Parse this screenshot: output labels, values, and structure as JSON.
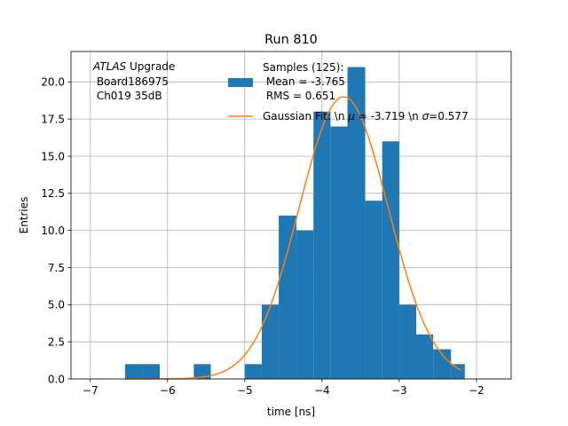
{
  "chart_data": {
    "type": "bar",
    "title": "Run 810",
    "xlabel": "time [ns]",
    "ylabel": "Entries",
    "xlim": [
      -7.25,
      -1.55
    ],
    "ylim": [
      0,
      22.05
    ],
    "grid": true,
    "xticks": [
      -7,
      -6,
      -5,
      -4,
      -3,
      -2
    ],
    "xtick_labels": [
      "−7",
      "−6",
      "−5",
      "−4",
      "−3",
      "−2"
    ],
    "yticks": [
      0,
      2.5,
      5,
      7.5,
      10,
      12.5,
      15,
      17.5,
      20
    ],
    "ytick_labels": [
      "0.0",
      "2.5",
      "5.0",
      "7.5",
      "10.0",
      "12.5",
      "15.0",
      "17.5",
      "20.0"
    ],
    "annotation": {
      "italic": "ATLAS",
      "line1_rest": " Upgrade",
      "line2": " Board186975",
      "line3": " Ch019 35dB"
    },
    "histogram": {
      "name": "Samples (125):",
      "name_line2": " Mean = -3.765",
      "name_line3": " RMS = 0.651",
      "color": "#1f77b4",
      "bins": [
        {
          "x0": -6.55,
          "x1": -6.33,
          "count": 1
        },
        {
          "x0": -6.33,
          "x1": -6.1,
          "count": 1
        },
        {
          "x0": -5.66,
          "x1": -5.44,
          "count": 1
        },
        {
          "x0": -5.0,
          "x1": -4.78,
          "count": 1
        },
        {
          "x0": -4.78,
          "x1": -4.56,
          "count": 5
        },
        {
          "x0": -4.56,
          "x1": -4.33,
          "count": 11
        },
        {
          "x0": -4.33,
          "x1": -4.11,
          "count": 10
        },
        {
          "x0": -4.11,
          "x1": -3.89,
          "count": 18
        },
        {
          "x0": -3.89,
          "x1": -3.67,
          "count": 17
        },
        {
          "x0": -3.67,
          "x1": -3.44,
          "count": 21
        },
        {
          "x0": -3.44,
          "x1": -3.22,
          "count": 12
        },
        {
          "x0": -3.22,
          "x1": -3.0,
          "count": 16
        },
        {
          "x0": -3.0,
          "x1": -2.78,
          "count": 5
        },
        {
          "x0": -2.78,
          "x1": -2.56,
          "count": 3
        },
        {
          "x0": -2.56,
          "x1": -2.33,
          "count": 2
        },
        {
          "x0": -2.33,
          "x1": -2.15,
          "count": 1
        }
      ]
    },
    "fit": {
      "name_prefix": "Gaussian Fit: \\n ",
      "mu_symbol": "μ",
      "mu_text": " = -3.719 \\n ",
      "sigma_symbol": "σ",
      "sigma_text": "=0.577",
      "color": "#ff7f0e",
      "amplitude": 19.0,
      "mu": -3.719,
      "sigma": 0.577,
      "x_range": [
        -6.55,
        -2.2
      ]
    },
    "legend_placement": "top-center"
  }
}
